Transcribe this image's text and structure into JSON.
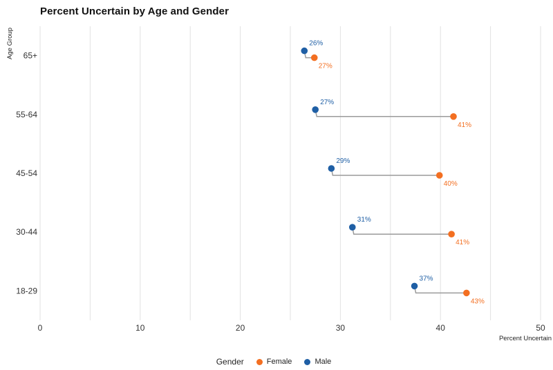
{
  "title": "Percent Uncertain by Age and Gender",
  "legend": {
    "title": "Gender",
    "items": [
      {
        "label": "Female",
        "color": "#f36f21"
      },
      {
        "label": "Male",
        "color": "#1f5fa5"
      }
    ]
  },
  "chart_data": {
    "type": "dumbbell",
    "title": "Percent Uncertain by Age and Gender",
    "xlabel": "Percent Uncertain",
    "ylabel": "Age Group",
    "xlim": [
      0,
      50
    ],
    "x_ticks": [
      0,
      10,
      20,
      30,
      40,
      50
    ],
    "grid": true,
    "legend_position": "bottom",
    "categories": [
      "65+",
      "55-64",
      "45-54",
      "30-44",
      "18-29"
    ],
    "series": [
      {
        "name": "Female",
        "color": "#f36f21",
        "values": [
          27.4,
          41.3,
          39.9,
          41.1,
          42.6
        ],
        "labels": [
          "27%",
          "41%",
          "40%",
          "41%",
          "43%"
        ]
      },
      {
        "name": "Male",
        "color": "#1f5fa5",
        "values": [
          26.4,
          27.5,
          29.1,
          31.2,
          37.4
        ],
        "labels": [
          "26%",
          "27%",
          "29%",
          "31%",
          "37%"
        ]
      }
    ],
    "connector_color": "#9a9a9a"
  }
}
